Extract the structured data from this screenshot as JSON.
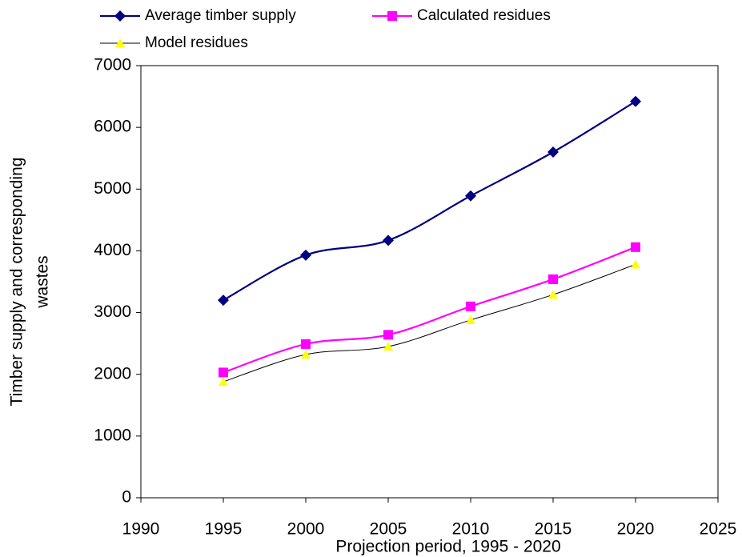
{
  "chart_data": {
    "type": "line",
    "x_label": "Projection period, 1995 - 2020",
    "y_label": [
      "Timber supply and corresponding",
      "wastes"
    ],
    "x": [
      1995,
      2000,
      2005,
      2010,
      2015,
      2020
    ],
    "series": [
      {
        "name": "Average timber supply",
        "color": "#000080",
        "marker": "diamond",
        "values": [
          3200,
          3930,
          4170,
          4890,
          5600,
          6420
        ]
      },
      {
        "name": "Calculated residues",
        "color": "#ff00ff",
        "marker": "square",
        "values": [
          2030,
          2490,
          2640,
          3100,
          3540,
          4060
        ]
      },
      {
        "name": "Model residues",
        "color": "#000000",
        "marker_color": "#ffff00",
        "marker": "triangle",
        "values": [
          1880,
          2320,
          2450,
          2880,
          3290,
          3780
        ]
      }
    ],
    "xlim": [
      1990,
      2025
    ],
    "xticks": [
      1990,
      1995,
      2000,
      2005,
      2010,
      2015,
      2020,
      2025
    ],
    "ylim": [
      0,
      7000
    ],
    "yticks": [
      0,
      1000,
      2000,
      3000,
      4000,
      5000,
      6000,
      7000
    ],
    "smooth": true,
    "legend": "top"
  }
}
